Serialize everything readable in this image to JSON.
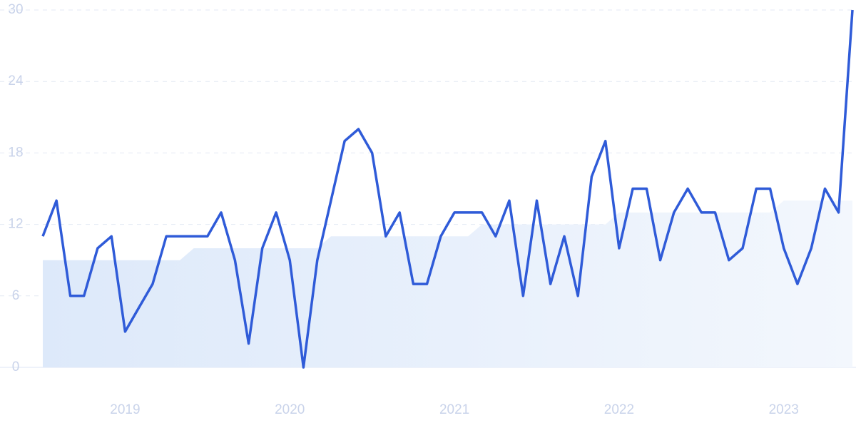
{
  "chart_data": {
    "type": "line",
    "x": [
      2018.5,
      2018.583,
      2018.667,
      2018.75,
      2018.833,
      2018.917,
      2019,
      2019.083,
      2019.167,
      2019.25,
      2019.333,
      2019.417,
      2019.5,
      2019.583,
      2019.667,
      2019.75,
      2019.833,
      2019.917,
      2020,
      2020.083,
      2020.167,
      2020.25,
      2020.333,
      2020.417,
      2020.5,
      2020.583,
      2020.667,
      2020.75,
      2020.833,
      2020.917,
      2021,
      2021.083,
      2021.167,
      2021.25,
      2021.333,
      2021.417,
      2021.5,
      2021.583,
      2021.667,
      2021.75,
      2021.833,
      2021.917,
      2022,
      2022.083,
      2022.167,
      2022.25,
      2022.333,
      2022.417,
      2022.5,
      2022.583,
      2022.667,
      2022.75,
      2022.833,
      2022.917,
      2023,
      2023.083,
      2023.167,
      2023.25,
      2023.333,
      2023.417
    ],
    "series": [
      {
        "kind": "area",
        "color": "#e3eefb",
        "values": [
          9,
          9,
          9,
          9,
          9,
          9,
          9,
          9,
          9,
          9,
          9,
          10,
          10,
          10,
          10,
          10,
          10,
          10,
          10,
          10,
          10,
          11,
          11,
          11,
          11,
          11,
          11,
          11,
          11,
          11,
          11,
          11,
          12,
          12,
          12,
          12,
          12,
          12,
          12,
          12,
          12,
          12,
          13,
          13,
          13,
          13,
          13,
          13,
          13,
          13,
          13,
          13,
          13,
          13,
          14,
          14,
          14,
          14,
          14,
          14
        ]
      },
      {
        "kind": "line",
        "color": "#2f5bd8",
        "values": [
          11,
          14,
          6,
          6,
          10,
          11,
          3,
          5,
          7,
          11,
          11,
          11,
          11,
          13,
          9,
          2,
          10,
          13,
          9,
          0,
          9,
          14,
          19,
          20,
          18,
          11,
          13,
          7,
          7,
          11,
          13,
          13,
          13,
          11,
          14,
          6,
          14,
          7,
          11,
          6,
          16,
          19,
          10,
          15,
          15,
          9,
          13,
          15,
          13,
          13,
          9,
          10,
          15,
          15,
          10,
          7,
          10,
          15,
          13,
          30
        ]
      }
    ],
    "xlim": [
      2018.5,
      2023.417
    ],
    "xticks": [
      2019,
      2020,
      2021,
      2022,
      2023
    ],
    "ylim": [
      0,
      30
    ],
    "yticks": [
      0,
      6,
      12,
      18,
      24,
      30
    ],
    "grid": true
  }
}
